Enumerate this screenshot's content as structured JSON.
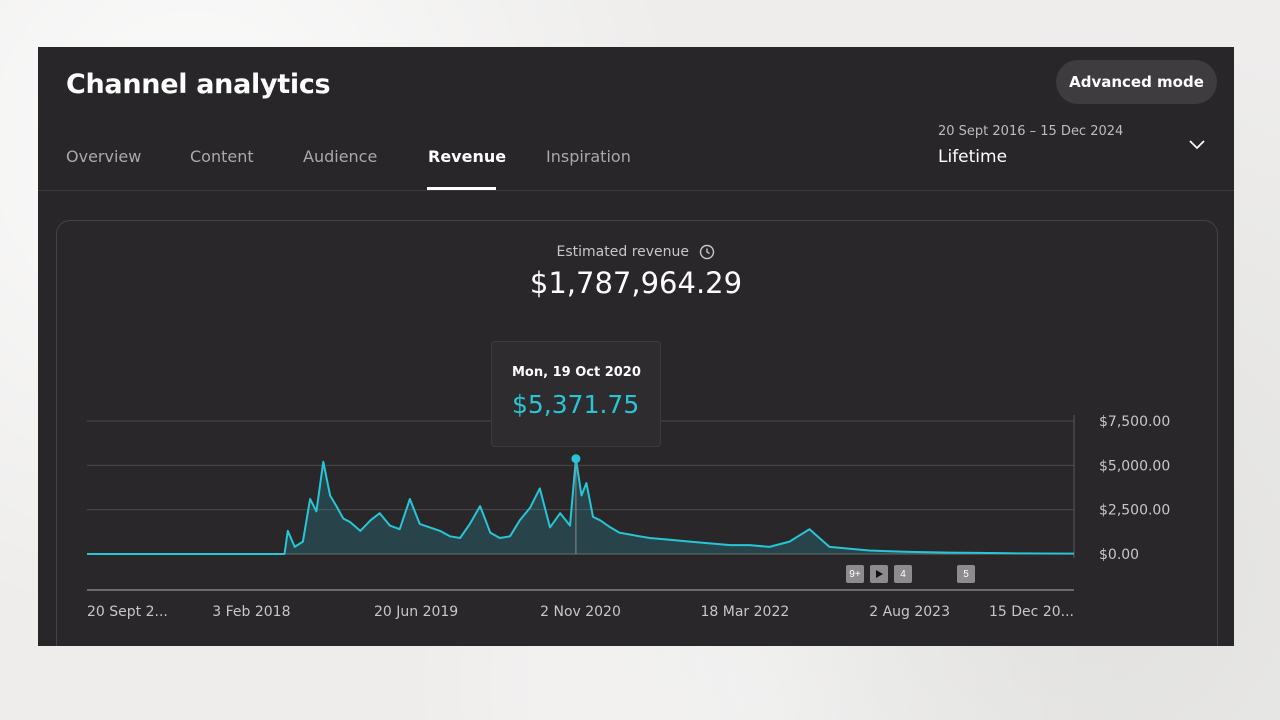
{
  "header": {
    "title": "Channel analytics",
    "advanced_mode_label": "Advanced mode"
  },
  "tabs": [
    {
      "label": "Overview",
      "active": false
    },
    {
      "label": "Content",
      "active": false
    },
    {
      "label": "Audience",
      "active": false
    },
    {
      "label": "Revenue",
      "active": true
    },
    {
      "label": "Inspiration",
      "active": false
    }
  ],
  "date_picker": {
    "range": "20 Sept 2016 – 15 Dec 2024",
    "label": "Lifetime",
    "icon": "chevron-down-icon"
  },
  "metric": {
    "label": "Estimated revenue",
    "info_icon": "clock-icon",
    "value": "$1,787,964.29"
  },
  "tooltip": {
    "date": "Mon, 19 Oct 2020",
    "value": "$5,371.75"
  },
  "markers": [
    {
      "label": "9+",
      "type": "count"
    },
    {
      "label": "",
      "type": "play"
    },
    {
      "label": "4",
      "type": "count"
    },
    {
      "label": "5",
      "type": "count"
    }
  ],
  "colors": {
    "accent": "#27c6d6",
    "background": "#282629",
    "grid": "#4a484b"
  },
  "chart_data": {
    "type": "area",
    "ylim": [
      0,
      7500
    ],
    "yticks": [
      "$0.00",
      "$2,500.00",
      "$5,000.00",
      "$7,500.00"
    ],
    "ytick_values": [
      0,
      2500,
      5000,
      7500
    ],
    "xticks": [
      "20 Sept 2...",
      "3 Feb 2018",
      "20 Jun 2019",
      "2 Nov 2020",
      "18 Mar 2022",
      "2 Aug 2023",
      "15 Dec 20..."
    ],
    "xtick_dates": [
      "2016-09-20",
      "2018-02-03",
      "2019-06-20",
      "2020-11-02",
      "2022-03-18",
      "2023-08-02",
      "2024-12-15"
    ],
    "x_range": [
      "2016-09-20",
      "2024-12-15"
    ],
    "grid": true,
    "highlight": {
      "x": "2020-10-19",
      "y": 5371.75
    },
    "series": [
      {
        "x": [
          "2016-09-20",
          "2017-06-01",
          "2018-01-01",
          "2018-05-15",
          "2018-05-25",
          "2018-06-15",
          "2018-07-10",
          "2018-08-01",
          "2018-08-20",
          "2018-09-10",
          "2018-10-01",
          "2018-10-20",
          "2018-11-10",
          "2018-12-01",
          "2019-01-01",
          "2019-02-01",
          "2019-03-01",
          "2019-04-01",
          "2019-05-01",
          "2019-06-01",
          "2019-07-01",
          "2019-08-01",
          "2019-09-01",
          "2019-10-01",
          "2019-11-01",
          "2019-12-01",
          "2020-01-01",
          "2020-02-01",
          "2020-03-01",
          "2020-04-01",
          "2020-05-01",
          "2020-06-01",
          "2020-07-01",
          "2020-08-01",
          "2020-09-01",
          "2020-10-01",
          "2020-10-19",
          "2020-11-05",
          "2020-11-20",
          "2020-12-10",
          "2021-01-01",
          "2021-02-01",
          "2021-03-01",
          "2021-04-01",
          "2021-05-01",
          "2021-06-01",
          "2021-08-01",
          "2021-10-01",
          "2021-12-01",
          "2022-02-01",
          "2022-04-01",
          "2022-06-01",
          "2022-08-01",
          "2022-10-01",
          "2022-12-01",
          "2023-02-01",
          "2023-04-01",
          "2023-06-01",
          "2023-08-01",
          "2023-10-01",
          "2023-12-01",
          "2024-03-01",
          "2024-06-01",
          "2024-09-01",
          "2024-12-15"
        ],
        "values": [
          0,
          0,
          0,
          0,
          1300,
          400,
          700,
          3100,
          2400,
          5200,
          3300,
          2700,
          2000,
          1800,
          1300,
          1900,
          2300,
          1600,
          1400,
          3100,
          1700,
          1500,
          1300,
          1000,
          900,
          1700,
          2700,
          1200,
          900,
          1000,
          1900,
          2600,
          3700,
          1500,
          2300,
          1600,
          5371.75,
          3300,
          4000,
          2100,
          1900,
          1500,
          1200,
          1100,
          1000,
          900,
          800,
          700,
          600,
          500,
          500,
          400,
          700,
          1400,
          400,
          300,
          200,
          150,
          120,
          100,
          80,
          60,
          40,
          30,
          20
        ]
      }
    ]
  }
}
